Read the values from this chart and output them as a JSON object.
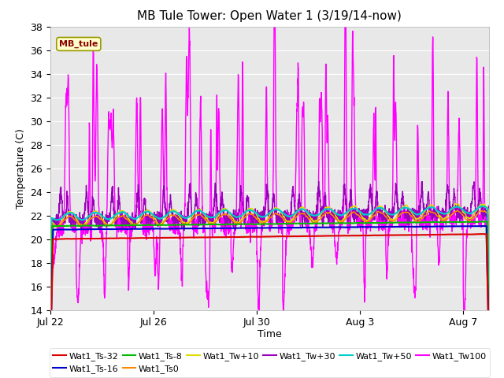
{
  "title": "MB Tule Tower: Open Water 1 (3/19/14-now)",
  "xlabel": "Time",
  "ylabel": "Temperature (C)",
  "ylim": [
    14,
    38
  ],
  "yticks": [
    14,
    16,
    18,
    20,
    22,
    24,
    26,
    28,
    30,
    32,
    34,
    36,
    38
  ],
  "plot_bg_color": "#e8e8e8",
  "colors": {
    "Wat1_Ts-32": "#dd0000",
    "Wat1_Ts-16": "#0000cc",
    "Wat1_Ts-8": "#00bb00",
    "Wat1_Ts0": "#ff8800",
    "Wat1_Tw+10": "#dddd00",
    "Wat1_Tw+30": "#9900bb",
    "Wat1_Tw+50": "#00cccc",
    "Wat1_Tw100": "#ff00ff"
  },
  "annotation_label": "MB_tule",
  "x_tick_labels": [
    "Jul 22",
    "Jul 26",
    "Jul 30",
    "Aug 3",
    "Aug 7"
  ],
  "x_tick_positions": [
    0,
    4,
    8,
    12,
    16
  ],
  "legend_order": [
    "Wat1_Ts-32",
    "Wat1_Ts-16",
    "Wat1_Ts-8",
    "Wat1_Ts0",
    "Wat1_Tw+10",
    "Wat1_Tw+30",
    "Wat1_Tw+50",
    "Wat1_Tw100"
  ]
}
